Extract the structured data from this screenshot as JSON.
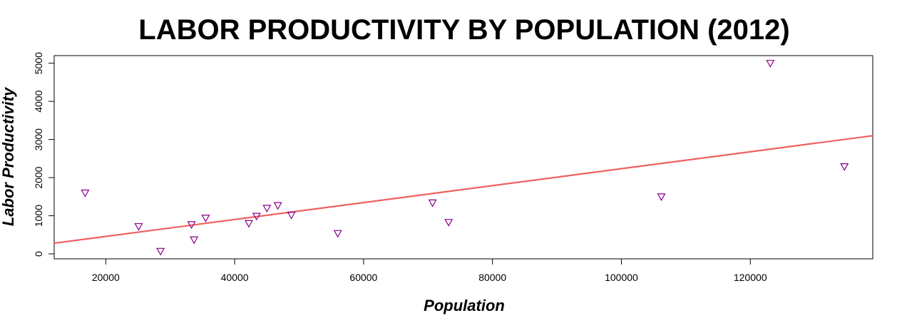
{
  "chart_data": {
    "type": "scatter",
    "title": "LABOR PRODUCTIVITY BY POPULATION (2012)",
    "xlabel": "Population",
    "ylabel": "Labor Productivity",
    "xlim": [
      12000,
      139000
    ],
    "ylim": [
      -130,
      5200
    ],
    "x_ticks": [
      20000,
      40000,
      60000,
      80000,
      100000,
      120000
    ],
    "y_ticks": [
      0,
      1000,
      2000,
      3000,
      4000,
      5000
    ],
    "grid": false,
    "legend": "none",
    "marker": "down-triangle",
    "colors": {
      "points": "#8b008b",
      "trend_line": "#f06060",
      "axes": "#000000"
    },
    "series": [
      {
        "x": [
          16800,
          25100,
          28500,
          33300,
          33700,
          35500,
          42200,
          43400,
          45000,
          46700,
          48800,
          56000,
          70700,
          73200,
          106200,
          123100,
          134600
        ],
        "y": [
          1600,
          720,
          70,
          770,
          370,
          940,
          800,
          990,
          1200,
          1270,
          1020,
          540,
          1340,
          830,
          1500,
          5000,
          2290
        ]
      }
    ],
    "trend_line": {
      "x": [
        12000,
        139000
      ],
      "y": [
        280,
        3100
      ]
    }
  }
}
